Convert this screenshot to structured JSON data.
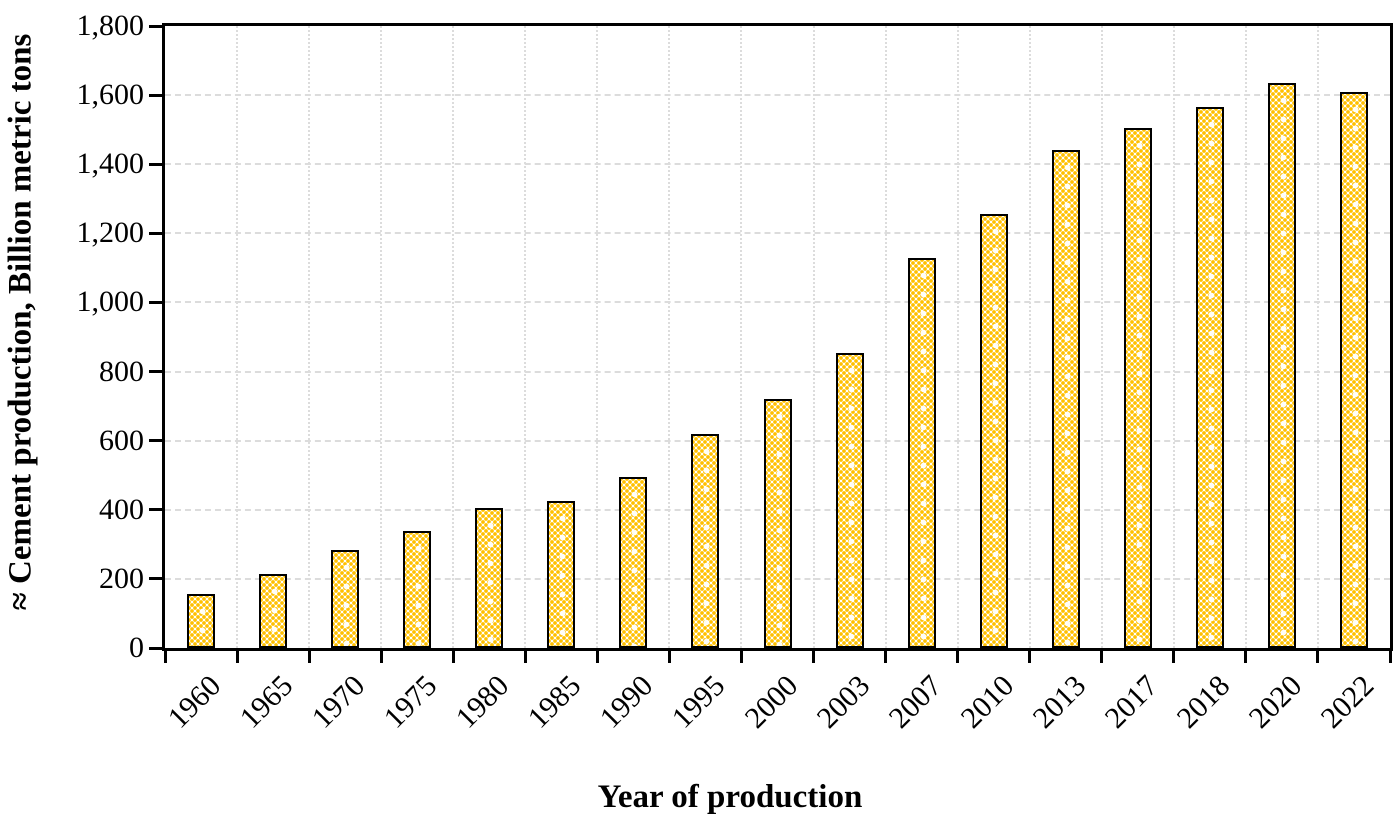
{
  "chart_data": {
    "type": "bar",
    "title": "",
    "xlabel": "Year of production",
    "ylabel": "≈ Cement production, Billion metric tons",
    "categories": [
      "1960",
      "1965",
      "1970",
      "1975",
      "1980",
      "1985",
      "1990",
      "1995",
      "2000",
      "2003",
      "2007",
      "2010",
      "2013",
      "2017",
      "2018",
      "2020",
      "2022"
    ],
    "values": [
      155,
      215,
      285,
      340,
      405,
      425,
      495,
      620,
      720,
      855,
      1130,
      1255,
      1440,
      1505,
      1565,
      1635,
      1610
    ],
    "ylim": [
      0,
      1800
    ],
    "ytick_step": 200,
    "ytick_values": [
      0,
      200,
      400,
      600,
      800,
      1000,
      1200,
      1400,
      1600,
      1800
    ],
    "ytick_labels": [
      "0",
      "200",
      "400",
      "600",
      "800",
      "1,000",
      "1,200",
      "1,400",
      "1,600",
      "1,800"
    ],
    "legend_position": "none",
    "grid": {
      "horizontal": "dashed light gray at every 200",
      "vertical": "dotted light gray at category boundaries"
    },
    "plot_frame": "full black border on all four sides"
  },
  "colors": {
    "bar_fill": "#FFC000",
    "bar_pattern_background": "#ffffff",
    "bar_border": "#000000",
    "axis": "#000000",
    "gridline": "#dcdcdc",
    "text": "#000000",
    "background": "#ffffff"
  }
}
